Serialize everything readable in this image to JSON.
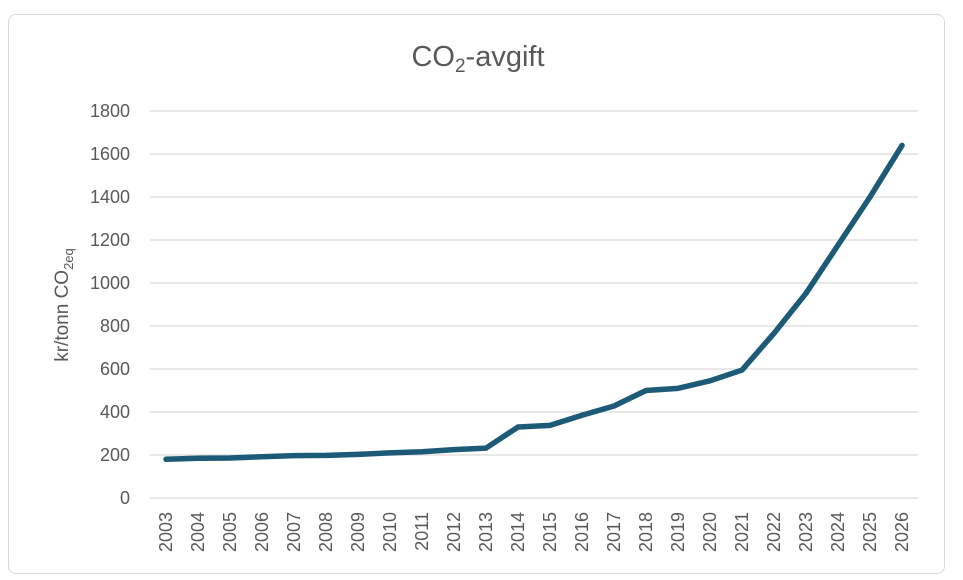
{
  "chart_data": {
    "type": "line",
    "title": "CO",
    "title_sub": "2",
    "title_suffix": "-avgift",
    "ylabel": "kr/tonn CO",
    "ylabel_sub": "2eq",
    "xlabel": "",
    "ylim": [
      0,
      1800
    ],
    "yticks": [
      0,
      200,
      400,
      600,
      800,
      1000,
      1200,
      1400,
      1600,
      1800
    ],
    "grid": true,
    "series_color": "#1c5a78",
    "categories": [
      "2003",
      "2004",
      "2005",
      "2006",
      "2007",
      "2008",
      "2009",
      "2010",
      "2011",
      "2012",
      "2013",
      "2014",
      "2015",
      "2016",
      "2017",
      "2018",
      "2019",
      "2020",
      "2021",
      "2022",
      "2023",
      "2024",
      "2025",
      "2026"
    ],
    "values": [
      180,
      185,
      186,
      192,
      197,
      198,
      203,
      210,
      215,
      225,
      232,
      330,
      338,
      385,
      428,
      500,
      510,
      545,
      595,
      766,
      952,
      1176,
      1400,
      1640
    ]
  }
}
